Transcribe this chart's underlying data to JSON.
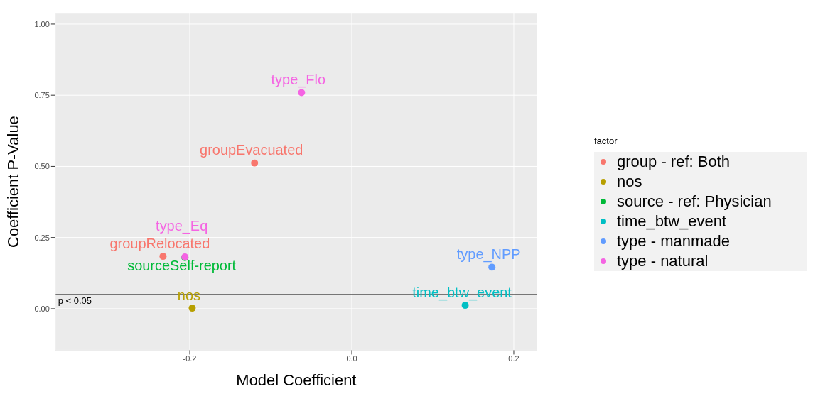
{
  "chart_data": {
    "type": "scatter",
    "xlabel": "Model Coefficient",
    "ylabel": "Coefficient P-Value",
    "legend_title": "factor",
    "legend": "right",
    "grid": true,
    "marker": "circle",
    "xlim": [
      -0.366,
      0.229
    ],
    "xticks": [
      {
        "value": -0.2,
        "label": "-0.2"
      },
      {
        "value": 0,
        "label": "0.0"
      },
      {
        "value": 0.2,
        "label": "0.2"
      }
    ],
    "ylim": [
      -0.146,
      1.038
    ],
    "yticks": [
      {
        "value": 0,
        "label": "0.00"
      },
      {
        "value": 0.25,
        "label": "0.25"
      },
      {
        "value": 0.5,
        "label": "0.50"
      },
      {
        "value": 0.75,
        "label": "0.75"
      },
      {
        "value": 1,
        "label": "1.00"
      }
    ],
    "series": [
      {
        "name": "group - ref: Both",
        "color": "#f8766d",
        "x": [
          -0.233,
          -0.12
        ],
        "values": [
          0.184,
          0.512
        ],
        "value_labels": [
          "groupRelocated",
          "groupEvacuated"
        ]
      },
      {
        "name": "nos",
        "color": "#b79f00",
        "x": [
          -0.197
        ],
        "values": [
          0.002
        ],
        "value_labels": [
          "nos"
        ]
      },
      {
        "name": "source - ref: Physician",
        "color": "#00ba38",
        "x": [
          -0.206
        ],
        "values": [
          0.18
        ],
        "value_labels": [
          "sourceSelf-report"
        ]
      },
      {
        "name": "time_btw_event",
        "color": "#00bfc4",
        "x": [
          0.14
        ],
        "values": [
          0.012
        ],
        "value_labels": [
          "time_btw_event"
        ]
      },
      {
        "name": "type - manmade",
        "color": "#619cff",
        "x": [
          0.173
        ],
        "values": [
          0.146
        ],
        "value_labels": [
          "type_NPP"
        ]
      },
      {
        "name": "type - natural",
        "color": "#f564e3",
        "x": [
          -0.062,
          -0.206
        ],
        "values": [
          0.759,
          0.182
        ],
        "value_labels": [
          "type_Flo",
          "type_Eq"
        ]
      }
    ],
    "ref_lines": [
      {
        "axis": "y",
        "value": 0.05,
        "label": "p < 0.05",
        "color": "#333333",
        "line_style": "solid"
      }
    ]
  }
}
